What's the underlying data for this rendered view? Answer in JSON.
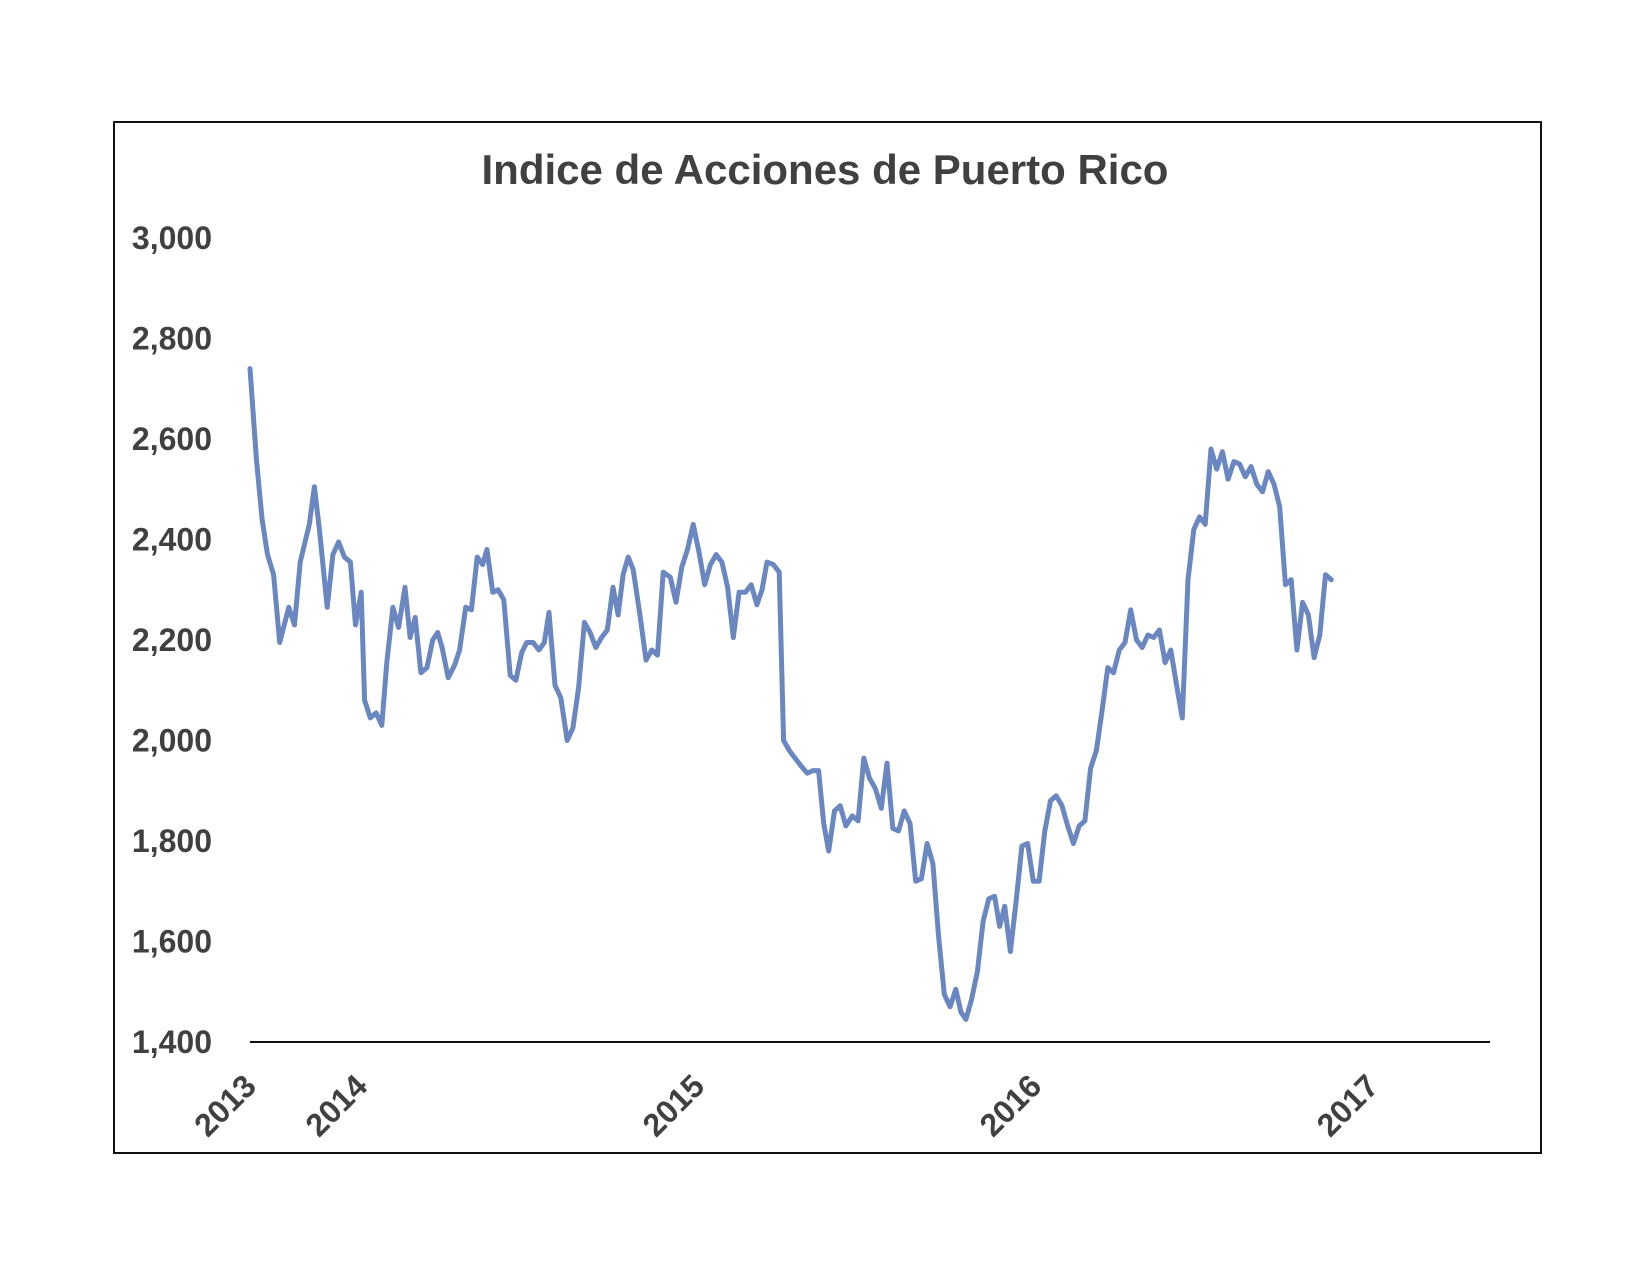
{
  "chart_data": {
    "type": "line",
    "title": "Indice de Acciones de Puerto Rico",
    "xlabel": "",
    "ylabel": "",
    "ylim": [
      1400,
      3000
    ],
    "yticks": [
      1400,
      1600,
      1800,
      2000,
      2200,
      2400,
      2600,
      2800,
      3000
    ],
    "ytick_labels": [
      "1,400",
      "1,600",
      "1,800",
      "2,000",
      "2,200",
      "2,400",
      "2,600",
      "2,800",
      "3,000"
    ],
    "xticks": [
      {
        "label": "2013",
        "x": 2013.0
      },
      {
        "label": "2014",
        "x": 2013.33
      },
      {
        "label": "2015",
        "x": 2014.33
      },
      {
        "label": "2016",
        "x": 2015.33
      },
      {
        "label": "2017",
        "x": 2016.33
      }
    ],
    "xlim": [
      2013.0,
      2016.67
    ],
    "grid": false,
    "line_color": "#6A87C1",
    "series": [
      {
        "points": [
          [
            2013.0,
            2740
          ],
          [
            2013.019,
            2560
          ],
          [
            2013.036,
            2440
          ],
          [
            2013.052,
            2370
          ],
          [
            2013.07,
            2330
          ],
          [
            2013.088,
            2195
          ],
          [
            2013.115,
            2265
          ],
          [
            2013.132,
            2230
          ],
          [
            2013.149,
            2355
          ],
          [
            2013.176,
            2430
          ],
          [
            2013.191,
            2505
          ],
          [
            2013.206,
            2420
          ],
          [
            2013.229,
            2265
          ],
          [
            2013.246,
            2370
          ],
          [
            2013.263,
            2395
          ],
          [
            2013.28,
            2365
          ],
          [
            2013.298,
            2355
          ],
          [
            2013.313,
            2230
          ],
          [
            2013.33,
            2295
          ],
          [
            2013.34,
            2080
          ],
          [
            2013.357,
            2045
          ],
          [
            2013.374,
            2055
          ],
          [
            2013.391,
            2030
          ],
          [
            2013.406,
            2155
          ],
          [
            2013.424,
            2265
          ],
          [
            2013.441,
            2225
          ],
          [
            2013.46,
            2305
          ],
          [
            2013.475,
            2205
          ],
          [
            2013.49,
            2245
          ],
          [
            2013.507,
            2135
          ],
          [
            2013.525,
            2145
          ],
          [
            2013.542,
            2200
          ],
          [
            2013.557,
            2215
          ],
          [
            2013.57,
            2185
          ],
          [
            2013.588,
            2125
          ],
          [
            2013.607,
            2150
          ],
          [
            2013.622,
            2180
          ],
          [
            2013.64,
            2265
          ],
          [
            2013.657,
            2260
          ],
          [
            2013.674,
            2365
          ],
          [
            2013.69,
            2350
          ],
          [
            2013.703,
            2380
          ],
          [
            2013.72,
            2295
          ],
          [
            2013.736,
            2300
          ],
          [
            2013.753,
            2280
          ],
          [
            2013.772,
            2130
          ],
          [
            2013.789,
            2120
          ],
          [
            2013.806,
            2175
          ],
          [
            2013.821,
            2195
          ],
          [
            2013.84,
            2195
          ],
          [
            2013.857,
            2180
          ],
          [
            2013.873,
            2195
          ],
          [
            2013.887,
            2255
          ],
          [
            2013.905,
            2110
          ],
          [
            2013.922,
            2085
          ],
          [
            2013.941,
            2000
          ],
          [
            2013.958,
            2025
          ],
          [
            2013.975,
            2105
          ],
          [
            2013.992,
            2235
          ],
          [
            2014.009,
            2215
          ],
          [
            2014.026,
            2185
          ],
          [
            2014.043,
            2205
          ],
          [
            2014.06,
            2220
          ],
          [
            2014.077,
            2305
          ],
          [
            2014.092,
            2250
          ],
          [
            2014.107,
            2330
          ],
          [
            2014.122,
            2365
          ],
          [
            2014.137,
            2340
          ],
          [
            2014.158,
            2245
          ],
          [
            2014.175,
            2160
          ],
          [
            2014.192,
            2180
          ],
          [
            2014.209,
            2170
          ],
          [
            2014.226,
            2335
          ],
          [
            2014.247,
            2325
          ],
          [
            2014.264,
            2275
          ],
          [
            2014.281,
            2345
          ],
          [
            2014.298,
            2380
          ],
          [
            2014.315,
            2430
          ],
          [
            2014.332,
            2375
          ],
          [
            2014.349,
            2310
          ],
          [
            2014.366,
            2350
          ],
          [
            2014.383,
            2370
          ],
          [
            2014.4,
            2355
          ],
          [
            2014.417,
            2305
          ],
          [
            2014.434,
            2205
          ],
          [
            2014.451,
            2295
          ],
          [
            2014.47,
            2295
          ],
          [
            2014.487,
            2310
          ],
          [
            2014.504,
            2270
          ],
          [
            2014.519,
            2300
          ],
          [
            2014.534,
            2355
          ],
          [
            2014.553,
            2350
          ],
          [
            2014.57,
            2335
          ],
          [
            2014.583,
            2000
          ],
          [
            2014.6,
            1980
          ],
          [
            2014.617,
            1965
          ],
          [
            2014.634,
            1950
          ],
          [
            2014.653,
            1935
          ],
          [
            2014.67,
            1940
          ],
          [
            2014.687,
            1940
          ],
          [
            2014.702,
            1835
          ],
          [
            2014.717,
            1780
          ],
          [
            2014.734,
            1860
          ],
          [
            2014.751,
            1870
          ],
          [
            2014.768,
            1830
          ],
          [
            2014.787,
            1850
          ],
          [
            2014.804,
            1840
          ],
          [
            2014.821,
            1965
          ],
          [
            2014.838,
            1925
          ],
          [
            2014.855,
            1905
          ],
          [
            2014.873,
            1865
          ],
          [
            2014.89,
            1955
          ],
          [
            2014.907,
            1825
          ],
          [
            2014.924,
            1820
          ],
          [
            2014.941,
            1860
          ],
          [
            2014.958,
            1835
          ],
          [
            2014.975,
            1720
          ],
          [
            2014.992,
            1725
          ],
          [
            2015.009,
            1795
          ],
          [
            2015.026,
            1755
          ],
          [
            2015.043,
            1610
          ],
          [
            2015.06,
            1495
          ],
          [
            2015.077,
            1470
          ],
          [
            2015.094,
            1505
          ],
          [
            2015.109,
            1460
          ],
          [
            2015.124,
            1445
          ],
          [
            2015.141,
            1485
          ],
          [
            2015.158,
            1540
          ],
          [
            2015.175,
            1640
          ],
          [
            2015.192,
            1685
          ],
          [
            2015.209,
            1690
          ],
          [
            2015.224,
            1630
          ],
          [
            2015.239,
            1670
          ],
          [
            2015.256,
            1580
          ],
          [
            2015.273,
            1680
          ],
          [
            2015.29,
            1790
          ],
          [
            2015.307,
            1795
          ],
          [
            2015.324,
            1720
          ],
          [
            2015.341,
            1720
          ],
          [
            2015.358,
            1820
          ],
          [
            2015.375,
            1880
          ],
          [
            2015.392,
            1890
          ],
          [
            2015.409,
            1870
          ],
          [
            2015.426,
            1830
          ],
          [
            2015.443,
            1795
          ],
          [
            2015.46,
            1830
          ],
          [
            2015.477,
            1840
          ],
          [
            2015.494,
            1945
          ],
          [
            2015.511,
            1980
          ],
          [
            2015.528,
            2060
          ],
          [
            2015.545,
            2145
          ],
          [
            2015.562,
            2135
          ],
          [
            2015.579,
            2180
          ],
          [
            2015.596,
            2195
          ],
          [
            2015.613,
            2260
          ],
          [
            2015.63,
            2200
          ],
          [
            2015.647,
            2185
          ],
          [
            2015.664,
            2210
          ],
          [
            2015.681,
            2205
          ],
          [
            2015.698,
            2220
          ],
          [
            2015.715,
            2155
          ],
          [
            2015.732,
            2180
          ],
          [
            2015.749,
            2110
          ],
          [
            2015.766,
            2045
          ],
          [
            2015.783,
            2320
          ],
          [
            2015.8,
            2420
          ],
          [
            2015.817,
            2445
          ],
          [
            2015.834,
            2430
          ],
          [
            2015.851,
            2580
          ],
          [
            2015.868,
            2540
          ],
          [
            2015.885,
            2575
          ],
          [
            2015.902,
            2520
          ],
          [
            2015.919,
            2555
          ],
          [
            2015.936,
            2550
          ],
          [
            2015.953,
            2525
          ],
          [
            2015.97,
            2545
          ],
          [
            2015.987,
            2510
          ],
          [
            2016.004,
            2495
          ],
          [
            2016.021,
            2535
          ],
          [
            2016.038,
            2510
          ],
          [
            2016.055,
            2465
          ],
          [
            2016.072,
            2310
          ],
          [
            2016.089,
            2320
          ],
          [
            2016.106,
            2180
          ],
          [
            2016.123,
            2275
          ],
          [
            2016.14,
            2250
          ],
          [
            2016.157,
            2165
          ],
          [
            2016.174,
            2210
          ],
          [
            2016.191,
            2330
          ],
          [
            2016.208,
            2320
          ]
        ]
      }
    ]
  }
}
